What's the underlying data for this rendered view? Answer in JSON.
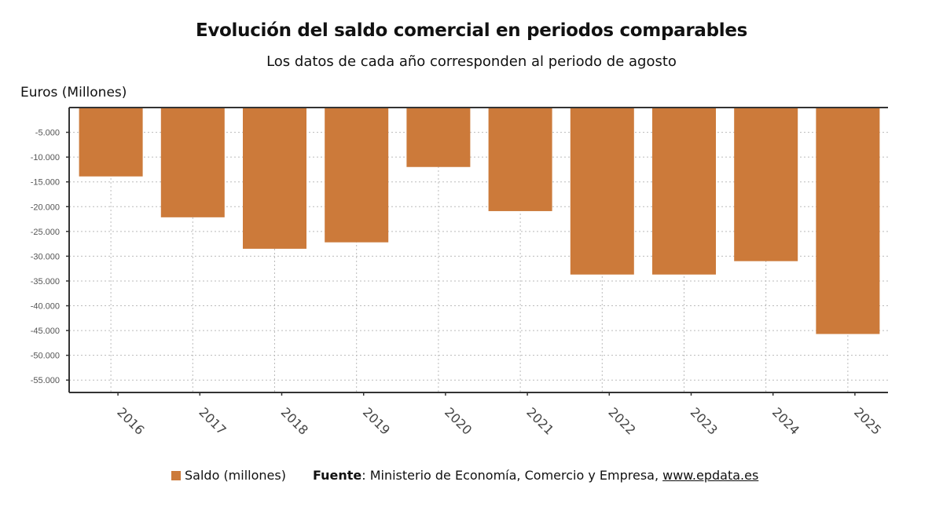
{
  "header": {
    "title": "Evolución del saldo comercial en periodos comparables",
    "subtitle": "Los datos de cada año corresponden al periodo de agosto"
  },
  "footer": {
    "legend_label": "Saldo (millones)",
    "source_label": "Fuente",
    "source_text": ": Ministerio de Economía, Comercio y Empresa, ",
    "source_link": "www.epdata.es"
  },
  "colors": {
    "bar": "#cc7a3a",
    "axis": "#333333",
    "grid": "#bbbbbb"
  },
  "chart_data": {
    "type": "bar",
    "title": "Evolución del saldo comercial en periodos comparables",
    "subtitle": "Los datos de cada año corresponden al periodo de agosto",
    "xlabel": "",
    "ylabel": "Euros (Millones)",
    "categories": [
      "2016",
      "2017",
      "2018",
      "2019",
      "2020",
      "2021",
      "2022",
      "2023",
      "2024",
      "2025"
    ],
    "series": [
      {
        "name": "Saldo (millones)",
        "values": [
          -13900,
          -22150,
          -28500,
          -27200,
          -12000,
          -20900,
          -33700,
          -33700,
          -31000,
          -45700
        ]
      }
    ],
    "ylim": [
      -57500,
      0
    ],
    "yticks": [
      -5000,
      -10000,
      -15000,
      -20000,
      -25000,
      -30000,
      -35000,
      -40000,
      -45000,
      -50000,
      -55000
    ],
    "ytick_labels": [
      "-5.000",
      "-10.000",
      "-15.000",
      "-20.000",
      "-25.000",
      "-30.000",
      "-35.000",
      "-40.000",
      "-45.000",
      "-50.000",
      "-55.000"
    ],
    "grid": true,
    "legend": "bottom-left"
  }
}
